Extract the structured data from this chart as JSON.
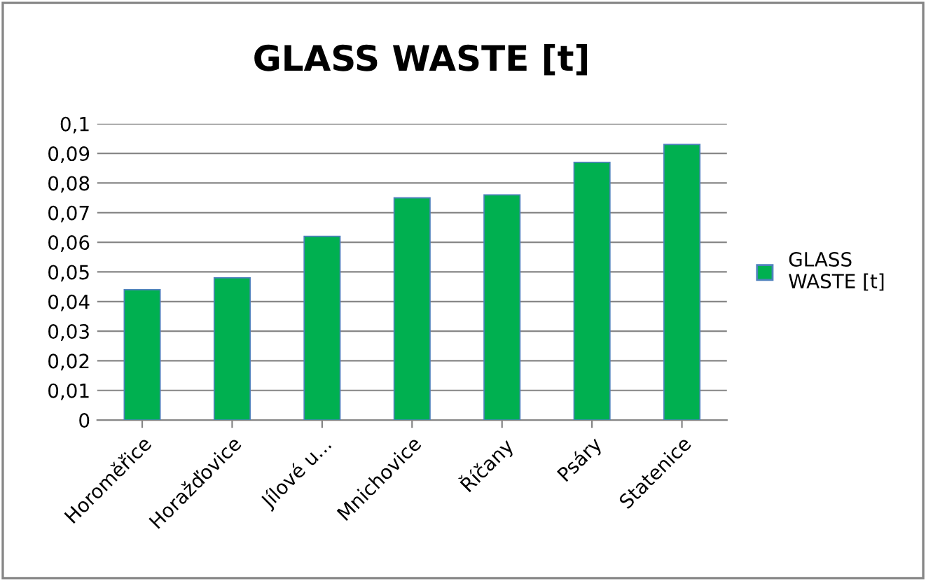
{
  "chart_data": {
    "type": "bar",
    "title": "GLASS WASTE [t]",
    "categories": [
      "Horoměřice",
      "Horažďovice",
      "Jílové u...",
      "Mnichovice",
      "Říčany",
      "Psáry",
      "Statenice"
    ],
    "series": [
      {
        "name": "GLASS WASTE [t]",
        "color": "#00b050",
        "values": [
          0.044,
          0.048,
          0.062,
          0.075,
          0.076,
          0.087,
          0.093
        ]
      }
    ],
    "ylim": [
      0,
      0.1
    ],
    "yticks": [
      {
        "value": 0,
        "label": "0"
      },
      {
        "value": 0.01,
        "label": "0,01"
      },
      {
        "value": 0.02,
        "label": "0,02"
      },
      {
        "value": 0.03,
        "label": "0,03"
      },
      {
        "value": 0.04,
        "label": "0,04"
      },
      {
        "value": 0.05,
        "label": "0,05"
      },
      {
        "value": 0.06,
        "label": "0,06"
      },
      {
        "value": 0.07,
        "label": "0,07"
      },
      {
        "value": 0.08,
        "label": "0,08"
      },
      {
        "value": 0.09,
        "label": "0,09"
      },
      {
        "value": 0.1,
        "label": "0,1"
      }
    ],
    "grid": "y",
    "legend": "right"
  }
}
